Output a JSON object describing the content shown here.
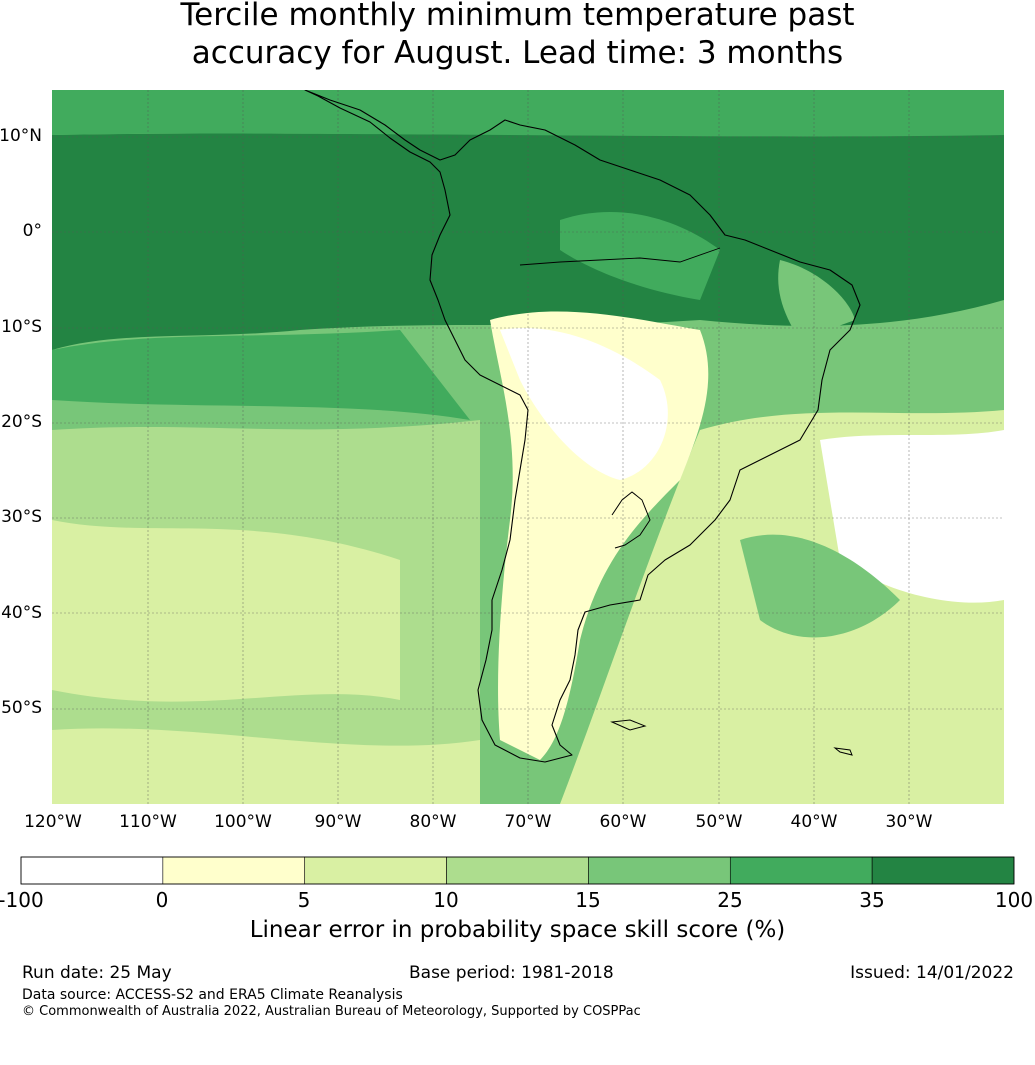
{
  "title": {
    "line1": "Tercile monthly minimum temperature past",
    "line2": "accuracy for August. Lead time: 3 months"
  },
  "map": {
    "lat_labels": [
      "10°N",
      "0°",
      "10°S",
      "20°S",
      "30°S",
      "40°S",
      "50°S"
    ],
    "lon_labels": [
      "120°W",
      "110°W",
      "100°W",
      "90°W",
      "80°W",
      "70°W",
      "60°W",
      "50°W",
      "40°W",
      "30°W"
    ],
    "extent": {
      "lon": [
        -121,
        -21
      ],
      "lat": [
        -60,
        15
      ]
    },
    "ocean_skill_color": "#45a35a"
  },
  "colorbar": {
    "ticks": [
      "-100",
      "0",
      "5",
      "10",
      "15",
      "25",
      "35",
      "100"
    ],
    "colors": [
      "#ffffff",
      "#ffffcc",
      "#d9f0a3",
      "#addd8e",
      "#78c679",
      "#41ab5d",
      "#238443"
    ],
    "label": "Linear error in probability space skill score (%)"
  },
  "footer": {
    "run_date": "Run date: 25 May",
    "base_period": "Base period: 1981-2018",
    "issued": "Issued: 14/01/2022",
    "data_source": "Data source: ACCESS-S2 and ERA5 Climate Reanalysis",
    "copyright": "© Commonwealth of Australia 2022, Australian Bureau of Meteorology, Supported by COSPPac"
  }
}
